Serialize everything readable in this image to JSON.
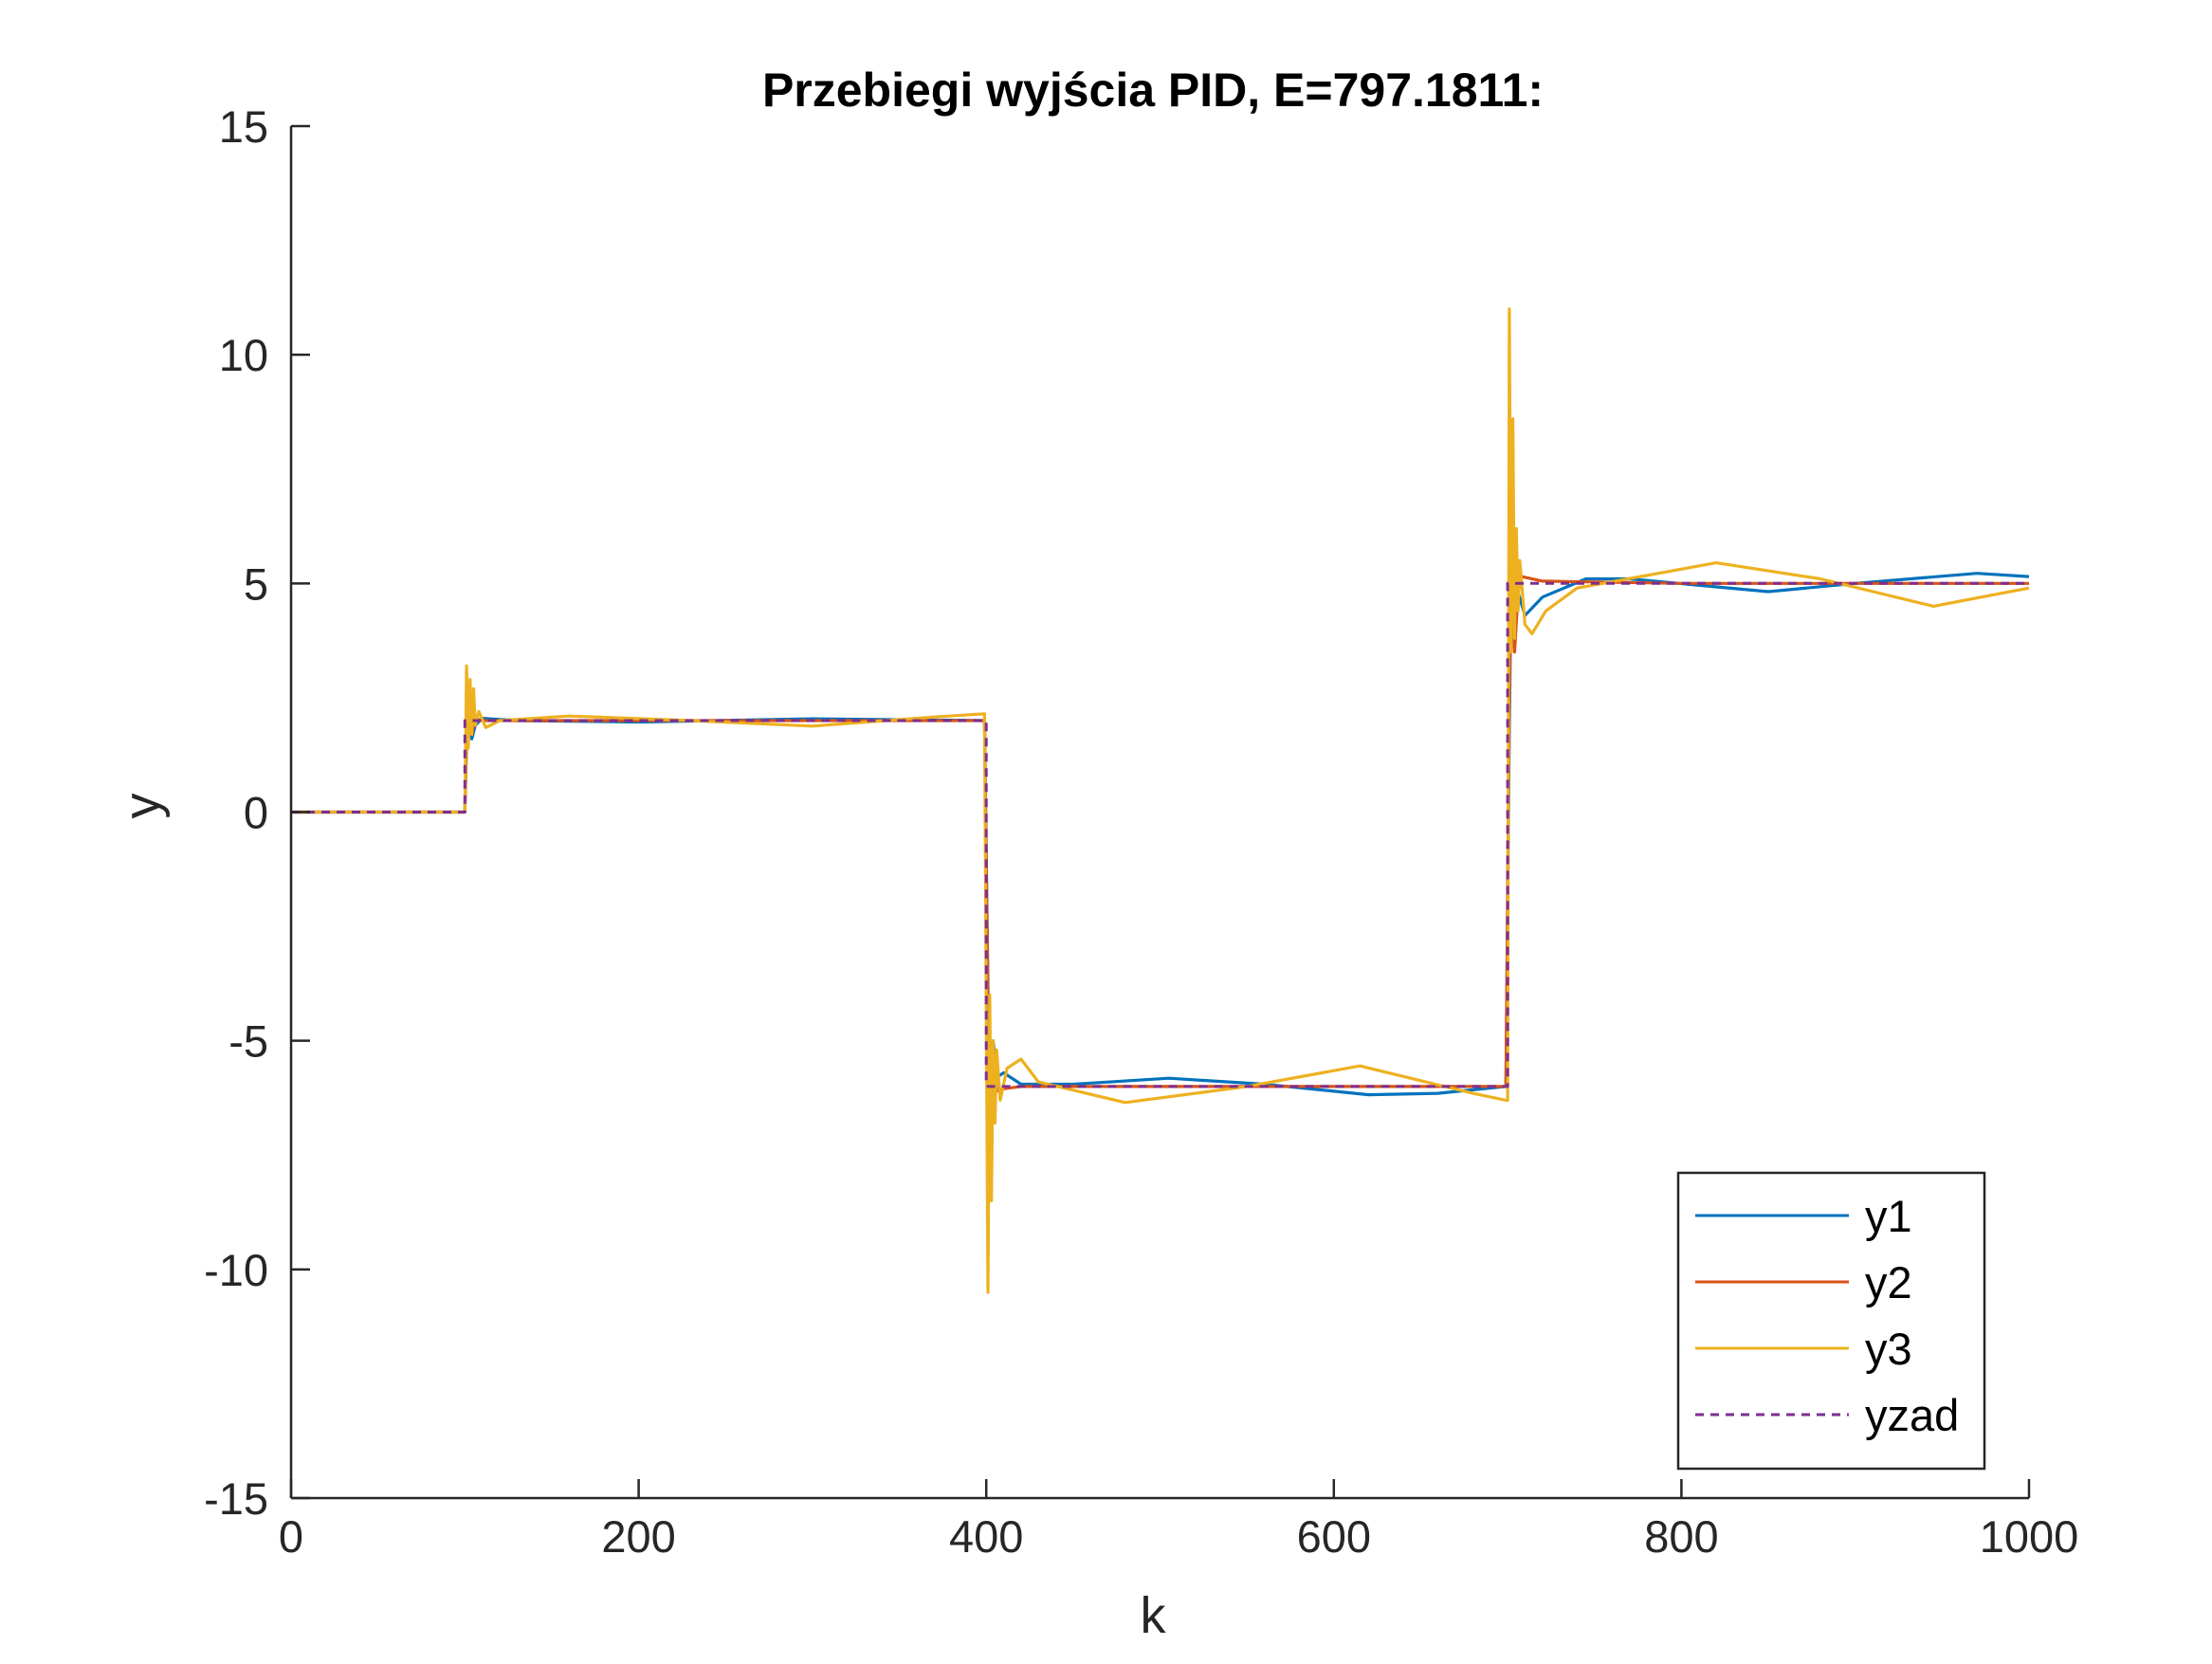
{
  "chart_data": {
    "type": "line",
    "title": "Przebiegi wyjścia PID, E=797.1811:",
    "xlabel": "k",
    "ylabel": "y",
    "xlim": [
      0,
      1000
    ],
    "ylim": [
      -15,
      15
    ],
    "xticks": [
      0,
      200,
      400,
      600,
      800,
      1000
    ],
    "xtick_labels": [
      "0",
      "200",
      "400",
      "600",
      "800",
      "1000"
    ],
    "yticks": [
      -15,
      -10,
      -5,
      0,
      5,
      10,
      15
    ],
    "ytick_labels": [
      "-15",
      "-10",
      "-5",
      "0",
      "5",
      "10",
      "15"
    ],
    "grid": false,
    "legend_position": "bottom-right",
    "series": [
      {
        "name": "y1",
        "color": "#0072BD",
        "style": "solid",
        "points": [
          [
            0,
            0
          ],
          [
            100,
            0
          ],
          [
            101,
            1.7
          ],
          [
            102,
            2.0
          ],
          [
            104,
            1.6
          ],
          [
            106,
            1.9
          ],
          [
            110,
            2.05
          ],
          [
            130,
            2.0
          ],
          [
            200,
            1.97
          ],
          [
            300,
            2.04
          ],
          [
            399,
            2.0
          ],
          [
            401,
            -3.8
          ],
          [
            402,
            -6.5
          ],
          [
            404,
            -5.0
          ],
          [
            406,
            -5.8
          ],
          [
            410,
            -5.7
          ],
          [
            420,
            -5.95
          ],
          [
            450,
            -5.95
          ],
          [
            505,
            -5.82
          ],
          [
            560,
            -5.95
          ],
          [
            620,
            -6.18
          ],
          [
            660,
            -6.15
          ],
          [
            699,
            -6.0
          ],
          [
            701,
            1.8
          ],
          [
            702,
            5.0
          ],
          [
            704,
            3.6
          ],
          [
            706,
            4.8
          ],
          [
            710,
            4.3
          ],
          [
            720,
            4.7
          ],
          [
            745,
            5.1
          ],
          [
            770,
            5.1
          ],
          [
            850,
            4.82
          ],
          [
            900,
            5.0
          ],
          [
            970,
            5.22
          ],
          [
            1000,
            5.15
          ]
        ]
      },
      {
        "name": "y2",
        "color": "#D95319",
        "style": "solid",
        "points": [
          [
            0,
            0
          ],
          [
            100,
            0
          ],
          [
            101,
            1.5
          ],
          [
            102,
            2.2
          ],
          [
            104,
            1.7
          ],
          [
            106,
            2.05
          ],
          [
            110,
            2.0
          ],
          [
            200,
            2.0
          ],
          [
            300,
            2.0
          ],
          [
            399,
            2.0
          ],
          [
            401,
            -4.2
          ],
          [
            402,
            -6.5
          ],
          [
            404,
            -5.2
          ],
          [
            406,
            -6.1
          ],
          [
            410,
            -6.05
          ],
          [
            420,
            -6.0
          ],
          [
            500,
            -6.0
          ],
          [
            600,
            -6.0
          ],
          [
            699,
            -6.0
          ],
          [
            701,
            2.5
          ],
          [
            702,
            5.2
          ],
          [
            704,
            3.5
          ],
          [
            706,
            4.8
          ],
          [
            708,
            5.15
          ],
          [
            720,
            5.05
          ],
          [
            800,
            5.0
          ],
          [
            900,
            5.0
          ],
          [
            1000,
            5.0
          ]
        ]
      },
      {
        "name": "y3",
        "color": "#EDB120",
        "style": "solid",
        "points": [
          [
            0,
            0
          ],
          [
            100,
            0
          ],
          [
            101,
            3.2
          ],
          [
            102,
            1.4
          ],
          [
            103,
            2.9
          ],
          [
            104,
            1.7
          ],
          [
            105,
            2.7
          ],
          [
            106,
            1.9
          ],
          [
            108,
            2.2
          ],
          [
            112,
            1.85
          ],
          [
            120,
            2.0
          ],
          [
            160,
            2.1
          ],
          [
            230,
            2.0
          ],
          [
            300,
            1.88
          ],
          [
            370,
            2.08
          ],
          [
            399,
            2.15
          ],
          [
            401,
            -10.5
          ],
          [
            402,
            -4.0
          ],
          [
            403,
            -8.5
          ],
          [
            404,
            -5.0
          ],
          [
            405,
            -6.8
          ],
          [
            406,
            -5.2
          ],
          [
            408,
            -6.3
          ],
          [
            412,
            -5.6
          ],
          [
            420,
            -5.4
          ],
          [
            430,
            -5.9
          ],
          [
            480,
            -6.35
          ],
          [
            550,
            -6.0
          ],
          [
            615,
            -5.55
          ],
          [
            680,
            -6.15
          ],
          [
            699,
            -6.3
          ],
          [
            700,
            -6.3
          ],
          [
            701,
            11.0
          ],
          [
            702,
            3.5
          ],
          [
            703,
            8.6
          ],
          [
            704,
            3.8
          ],
          [
            705,
            6.2
          ],
          [
            706,
            4.4
          ],
          [
            707,
            5.5
          ],
          [
            710,
            4.1
          ],
          [
            714,
            3.9
          ],
          [
            722,
            4.4
          ],
          [
            740,
            4.9
          ],
          [
            820,
            5.45
          ],
          [
            880,
            5.1
          ],
          [
            945,
            4.5
          ],
          [
            1000,
            4.9
          ]
        ]
      },
      {
        "name": "yzad",
        "color": "#7E2F8E",
        "style": "dashed",
        "points": [
          [
            0,
            0
          ],
          [
            100,
            0
          ],
          [
            100,
            2
          ],
          [
            400,
            2
          ],
          [
            400,
            -6
          ],
          [
            700,
            -6
          ],
          [
            700,
            5
          ],
          [
            1000,
            5
          ]
        ]
      }
    ]
  }
}
